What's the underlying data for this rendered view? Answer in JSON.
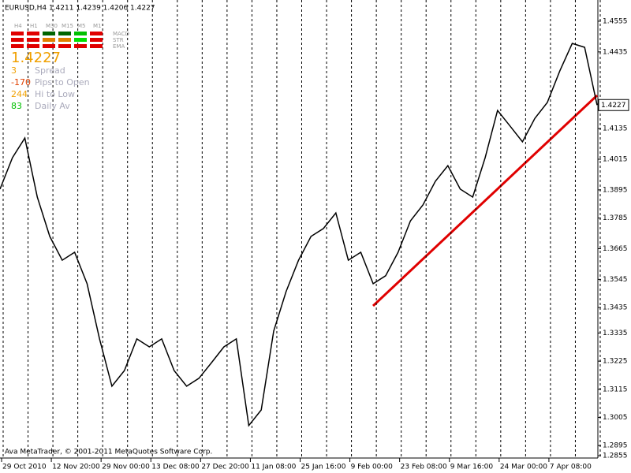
{
  "chart_data": {
    "type": "line",
    "header": "EURUSD,H4  1.4211 1.4239 1.4206 1.4227",
    "panel": {
      "timeframes": [
        "H4",
        "H1",
        "M30",
        "M15",
        "M5",
        "M1"
      ],
      "indicators": [
        "MACD",
        "STR",
        "EMA"
      ],
      "price": "1.4227",
      "stats": [
        {
          "value": 3,
          "label": "Spread"
        },
        {
          "value": -170,
          "label": "Pips to Open"
        },
        {
          "value": 244,
          "label": "Hi to Low"
        },
        {
          "value": 83,
          "label": "Daily Av"
        }
      ]
    },
    "footer": "Ava MetaTrader, © 2001-2011 MetaQuotes Software Corp.",
    "categories": [
      "29 Oct 2010",
      null,
      null,
      null,
      "12 Nov 20:00",
      null,
      null,
      null,
      "29 Nov 00:00",
      null,
      null,
      null,
      "13 Dec 08:00",
      null,
      null,
      null,
      "27 Dec 20:00",
      null,
      null,
      null,
      "11 Jan 08:00",
      null,
      null,
      null,
      "25 Jan 16:00",
      null,
      null,
      null,
      "9 Feb 00:00",
      null,
      null,
      null,
      "23 Feb 08:00",
      null,
      null,
      null,
      "9 Mar 16:00",
      null,
      null,
      null,
      "24 Mar 00:00",
      null,
      null,
      null,
      "7 Apr 08:00",
      null,
      null,
      null,
      null
    ],
    "values": [
      1.3898,
      1.4021,
      1.4098,
      1.3867,
      1.3713,
      1.362,
      1.3651,
      1.3528,
      1.3312,
      1.3127,
      1.3188,
      1.3312,
      1.3281,
      1.3312,
      1.3188,
      1.3127,
      1.3158,
      1.3219,
      1.3281,
      1.3312,
      1.2973,
      1.3034,
      1.3343,
      1.3497,
      1.362,
      1.3713,
      1.3744,
      1.3805,
      1.362,
      1.3651,
      1.3528,
      1.3559,
      1.3651,
      1.3774,
      1.3836,
      1.3929,
      1.399,
      1.3898,
      1.3867,
      1.4021,
      1.4206,
      1.4145,
      1.4083,
      1.4175,
      1.4237,
      1.436,
      1.4468,
      1.4453,
      1.4227
    ],
    "color": "#000000",
    "ylim": [
      1.2846,
      1.4638
    ],
    "yticks": [
      1.4555,
      1.4435,
      1.4135,
      1.4015,
      1.3895,
      1.3785,
      1.3665,
      1.3545,
      1.3435,
      1.3335,
      1.3225,
      1.3115,
      1.3005,
      1.2895,
      1.2855
    ],
    "annotations": [
      {
        "text": "1.4227",
        "y": 1.4227
      }
    ],
    "grid": true
  }
}
